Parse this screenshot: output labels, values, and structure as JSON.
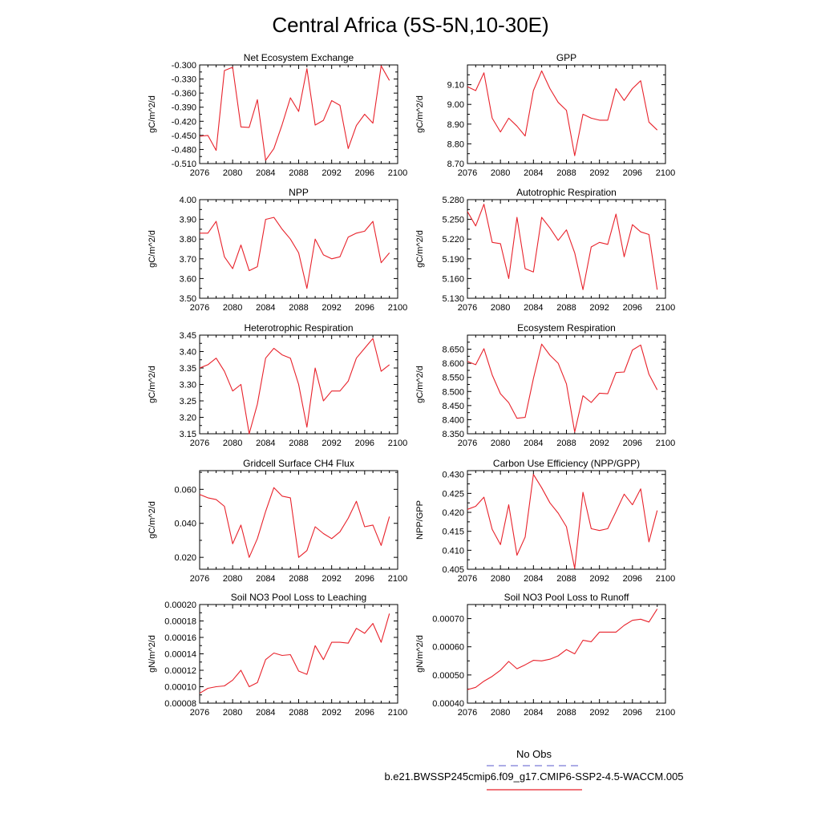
{
  "figure": {
    "title": "Central Africa (5S-5N,10-30E)",
    "legend": {
      "obs_label": "No Obs",
      "obs_color": "#7b7bd6",
      "model_label": "b.e21.BWSSP245cmip6.f09_g17.CMIP6-SSP2-4.5-WACCM.005",
      "model_color": "#e8222b"
    }
  },
  "chart_data": [
    {
      "type": "line",
      "title": "Net Ecosystem Exchange",
      "ylabel": "gC/m^2/d",
      "x": [
        2076,
        2077,
        2078,
        2079,
        2080,
        2081,
        2082,
        2083,
        2084,
        2085,
        2086,
        2087,
        2088,
        2089,
        2090,
        2091,
        2092,
        2093,
        2094,
        2095,
        2096,
        2097,
        2098,
        2099
      ],
      "xlim": [
        2076,
        2100
      ],
      "xticks": [
        "2076",
        "2080",
        "2084",
        "2088",
        "2092",
        "2096",
        "2100"
      ],
      "ylim": [
        -0.51,
        -0.3
      ],
      "yticks": [
        "-0.510",
        "-0.480",
        "-0.450",
        "-0.420",
        "-0.390",
        "-0.360",
        "-0.330",
        "-0.300"
      ],
      "series": [
        {
          "color": "#e8222b",
          "values": [
            -0.452,
            -0.45,
            -0.482,
            -0.312,
            -0.305,
            -0.432,
            -0.433,
            -0.374,
            -0.503,
            -0.478,
            -0.427,
            -0.37,
            -0.399,
            -0.308,
            -0.428,
            -0.418,
            -0.376,
            -0.386,
            -0.478,
            -0.429,
            -0.405,
            -0.424,
            -0.302,
            -0.333
          ]
        }
      ]
    },
    {
      "type": "line",
      "title": "GPP",
      "ylabel": "gC/m^2/d",
      "x": [
        2076,
        2077,
        2078,
        2079,
        2080,
        2081,
        2082,
        2083,
        2084,
        2085,
        2086,
        2087,
        2088,
        2089,
        2090,
        2091,
        2092,
        2093,
        2094,
        2095,
        2096,
        2097,
        2098,
        2099
      ],
      "xlim": [
        2076,
        2100
      ],
      "xticks": [
        "2076",
        "2080",
        "2084",
        "2088",
        "2092",
        "2096",
        "2100"
      ],
      "ylim": [
        8.7,
        9.2
      ],
      "yticks": [
        "8.70",
        "8.80",
        "8.90",
        "9.00",
        "9.10"
      ],
      "series": [
        {
          "color": "#e8222b",
          "values": [
            9.09,
            9.07,
            9.16,
            8.93,
            8.86,
            8.93,
            8.89,
            8.84,
            9.07,
            9.17,
            9.08,
            9.01,
            8.97,
            8.74,
            8.95,
            8.93,
            8.92,
            8.92,
            9.08,
            9.02,
            9.08,
            9.12,
            8.91,
            8.87
          ]
        }
      ]
    },
    {
      "type": "line",
      "title": "NPP",
      "ylabel": "gC/m^2/d",
      "x": [
        2076,
        2077,
        2078,
        2079,
        2080,
        2081,
        2082,
        2083,
        2084,
        2085,
        2086,
        2087,
        2088,
        2089,
        2090,
        2091,
        2092,
        2093,
        2094,
        2095,
        2096,
        2097,
        2098,
        2099
      ],
      "xlim": [
        2076,
        2100
      ],
      "xticks": [
        "2076",
        "2080",
        "2084",
        "2088",
        "2092",
        "2096",
        "2100"
      ],
      "ylim": [
        3.5,
        4.0
      ],
      "yticks": [
        "3.50",
        "3.60",
        "3.70",
        "3.80",
        "3.90",
        "4.00"
      ],
      "series": [
        {
          "color": "#e8222b",
          "values": [
            3.83,
            3.83,
            3.89,
            3.71,
            3.65,
            3.77,
            3.64,
            3.66,
            3.9,
            3.91,
            3.85,
            3.8,
            3.73,
            3.55,
            3.8,
            3.72,
            3.7,
            3.71,
            3.81,
            3.83,
            3.84,
            3.89,
            3.68,
            3.73
          ]
        }
      ]
    },
    {
      "type": "line",
      "title": "Autotrophic Respiration",
      "ylabel": "gC/m^2/d",
      "x": [
        2076,
        2077,
        2078,
        2079,
        2080,
        2081,
        2082,
        2083,
        2084,
        2085,
        2086,
        2087,
        2088,
        2089,
        2090,
        2091,
        2092,
        2093,
        2094,
        2095,
        2096,
        2097,
        2098,
        2099
      ],
      "xlim": [
        2076,
        2100
      ],
      "xticks": [
        "2076",
        "2080",
        "2084",
        "2088",
        "2092",
        "2096",
        "2100"
      ],
      "ylim": [
        5.13,
        5.28
      ],
      "yticks": [
        "5.130",
        "5.160",
        "5.190",
        "5.220",
        "5.250",
        "5.280"
      ],
      "series": [
        {
          "color": "#e8222b",
          "values": [
            5.262,
            5.24,
            5.273,
            5.215,
            5.213,
            5.16,
            5.253,
            5.175,
            5.17,
            5.253,
            5.237,
            5.218,
            5.234,
            5.199,
            5.143,
            5.208,
            5.215,
            5.212,
            5.258,
            5.193,
            5.242,
            5.231,
            5.227,
            5.143
          ]
        }
      ]
    },
    {
      "type": "line",
      "title": "Heterotrophic Respiration",
      "ylabel": "gC/m^2/d",
      "x": [
        2076,
        2077,
        2078,
        2079,
        2080,
        2081,
        2082,
        2083,
        2084,
        2085,
        2086,
        2087,
        2088,
        2089,
        2090,
        2091,
        2092,
        2093,
        2094,
        2095,
        2096,
        2097,
        2098,
        2099
      ],
      "xlim": [
        2076,
        2100
      ],
      "xticks": [
        "2076",
        "2080",
        "2084",
        "2088",
        "2092",
        "2096",
        "2100"
      ],
      "ylim": [
        3.15,
        3.45
      ],
      "yticks": [
        "3.15",
        "3.20",
        "3.25",
        "3.30",
        "3.35",
        "3.40",
        "3.45"
      ],
      "series": [
        {
          "color": "#e8222b",
          "values": [
            3.35,
            3.36,
            3.38,
            3.34,
            3.28,
            3.3,
            3.15,
            3.24,
            3.38,
            3.41,
            3.39,
            3.38,
            3.3,
            3.17,
            3.35,
            3.25,
            3.28,
            3.28,
            3.31,
            3.38,
            3.41,
            3.44,
            3.34,
            3.36
          ]
        }
      ]
    },
    {
      "type": "line",
      "title": "Ecosystem Respiration",
      "ylabel": "gC/m^2/d",
      "x": [
        2076,
        2077,
        2078,
        2079,
        2080,
        2081,
        2082,
        2083,
        2084,
        2085,
        2086,
        2087,
        2088,
        2089,
        2090,
        2091,
        2092,
        2093,
        2094,
        2095,
        2096,
        2097,
        2098,
        2099
      ],
      "xlim": [
        2076,
        2100
      ],
      "xticks": [
        "2076",
        "2080",
        "2084",
        "2088",
        "2092",
        "2096",
        "2100"
      ],
      "ylim": [
        8.35,
        8.7
      ],
      "yticks": [
        "8.350",
        "8.400",
        "8.450",
        "8.500",
        "8.550",
        "8.600",
        "8.650"
      ],
      "series": [
        {
          "color": "#e8222b",
          "values": [
            8.607,
            8.595,
            8.652,
            8.559,
            8.492,
            8.46,
            8.405,
            8.408,
            8.546,
            8.668,
            8.629,
            8.6,
            8.527,
            8.356,
            8.485,
            8.461,
            8.494,
            8.492,
            8.567,
            8.569,
            8.647,
            8.665,
            8.561,
            8.506
          ]
        }
      ]
    },
    {
      "type": "line",
      "title": "Gridcell Surface CH4 Flux",
      "ylabel": "gC/m^2/d",
      "x": [
        2076,
        2077,
        2078,
        2079,
        2080,
        2081,
        2082,
        2083,
        2084,
        2085,
        2086,
        2087,
        2088,
        2089,
        2090,
        2091,
        2092,
        2093,
        2094,
        2095,
        2096,
        2097,
        2098,
        2099
      ],
      "xlim": [
        2076,
        2100
      ],
      "xticks": [
        "2076",
        "2080",
        "2084",
        "2088",
        "2092",
        "2096",
        "2100"
      ],
      "ylim": [
        0.013,
        0.071
      ],
      "yticks": [
        "0.020",
        "0.040",
        "0.060"
      ],
      "series": [
        {
          "color": "#e8222b",
          "values": [
            0.057,
            0.055,
            0.054,
            0.05,
            0.028,
            0.039,
            0.02,
            0.031,
            0.047,
            0.061,
            0.056,
            0.055,
            0.02,
            0.024,
            0.038,
            0.034,
            0.031,
            0.035,
            0.043,
            0.053,
            0.038,
            0.039,
            0.027,
            0.044
          ]
        }
      ]
    },
    {
      "type": "line",
      "title": "Carbon Use Efficiency (NPP/GPP)",
      "ylabel": "NPP/GPP",
      "x": [
        2076,
        2077,
        2078,
        2079,
        2080,
        2081,
        2082,
        2083,
        2084,
        2085,
        2086,
        2087,
        2088,
        2089,
        2090,
        2091,
        2092,
        2093,
        2094,
        2095,
        2096,
        2097,
        2098,
        2099
      ],
      "xlim": [
        2076,
        2100
      ],
      "xticks": [
        "2076",
        "2080",
        "2084",
        "2088",
        "2092",
        "2096",
        "2100"
      ],
      "ylim": [
        0.405,
        0.431
      ],
      "yticks": [
        "0.405",
        "0.410",
        "0.415",
        "0.420",
        "0.425",
        "0.430"
      ],
      "series": [
        {
          "color": "#e8222b",
          "values": [
            0.4208,
            0.4216,
            0.424,
            0.4155,
            0.4115,
            0.422,
            0.4087,
            0.4135,
            0.43,
            0.4265,
            0.4225,
            0.4198,
            0.4162,
            0.4052,
            0.4253,
            0.4157,
            0.4152,
            0.4157,
            0.4202,
            0.4248,
            0.422,
            0.4262,
            0.4122,
            0.4205
          ]
        }
      ]
    },
    {
      "type": "line",
      "title": "Soil NO3 Pool Loss to Leaching",
      "ylabel": "gN/m^2/d",
      "x": [
        2076,
        2077,
        2078,
        2079,
        2080,
        2081,
        2082,
        2083,
        2084,
        2085,
        2086,
        2087,
        2088,
        2089,
        2090,
        2091,
        2092,
        2093,
        2094,
        2095,
        2096,
        2097,
        2098,
        2099
      ],
      "xlim": [
        2076,
        2100
      ],
      "xticks": [
        "2076",
        "2080",
        "2084",
        "2088",
        "2092",
        "2096",
        "2100"
      ],
      "ylim": [
        8e-05,
        0.0002
      ],
      "yticks": [
        "0.00008",
        "0.00010",
        "0.00012",
        "0.00014",
        "0.00016",
        "0.00018",
        "0.00020"
      ],
      "series": [
        {
          "color": "#e8222b",
          "values": [
            9.2e-05,
            9.8e-05,
            0.0001,
            0.000101,
            0.000108,
            0.00012,
            0.0001,
            0.000105,
            0.000133,
            0.000141,
            0.000138,
            0.000139,
            0.000119,
            0.000115,
            0.00015,
            0.000133,
            0.000154,
            0.000154,
            0.000153,
            0.000171,
            0.000165,
            0.000177,
            0.000154,
            0.000189
          ]
        }
      ]
    },
    {
      "type": "line",
      "title": "Soil NO3 Pool Loss to Runoff",
      "ylabel": "gN/m^2/d",
      "x": [
        2076,
        2077,
        2078,
        2079,
        2080,
        2081,
        2082,
        2083,
        2084,
        2085,
        2086,
        2087,
        2088,
        2089,
        2090,
        2091,
        2092,
        2093,
        2094,
        2095,
        2096,
        2097,
        2098,
        2099
      ],
      "xlim": [
        2076,
        2100
      ],
      "xticks": [
        "2076",
        "2080",
        "2084",
        "2088",
        "2092",
        "2096",
        "2100"
      ],
      "ylim": [
        0.0004,
        0.00075
      ],
      "yticks": [
        "0.00040",
        "0.00050",
        "0.00060",
        "0.00070"
      ],
      "series": [
        {
          "color": "#e8222b",
          "values": [
            0.000448,
            0.000456,
            0.000478,
            0.000495,
            0.000517,
            0.000548,
            0.000522,
            0.000536,
            0.000552,
            0.00055,
            0.000556,
            0.000568,
            0.00059,
            0.000575,
            0.000623,
            0.000618,
            0.000652,
            0.000652,
            0.000652,
            0.000676,
            0.000694,
            0.000698,
            0.000688,
            0.000734
          ]
        }
      ]
    }
  ]
}
